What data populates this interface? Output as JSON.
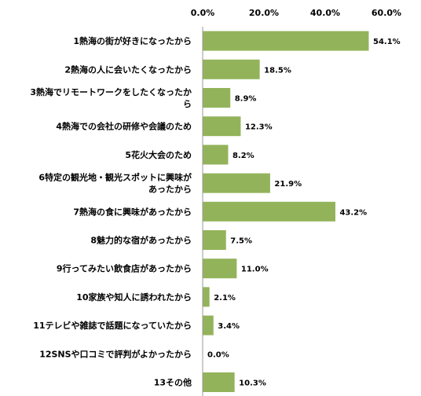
{
  "chart_data": {
    "type": "bar",
    "orientation": "horizontal",
    "title": "",
    "xlabel": "",
    "ylabel": "",
    "xlim": [
      0,
      60
    ],
    "x_ticks": [
      "0.0%",
      "20.0%",
      "40.0%",
      "60.0%"
    ],
    "grid": false,
    "bar_color": "#93b35a",
    "categories": [
      "1熱海の街が好きになったから",
      "2熱海の人に会いたくなったから",
      "3熱海でリモートワークをしたくなったから",
      "4熱海での会社の研修や会議のため",
      "5花火大会のため",
      "6特定の観光地・観光スポットに興味があったから",
      "7熱海の食に興味があったから",
      "8魅力的な宿があったから",
      "9行ってみたい飲食店があったから",
      "10家族や知人に誘われたから",
      "11テレビや雑誌で話題になっていたから",
      "12SNSや口コミで評判がよかったから",
      "13その他"
    ],
    "category_lines": [
      [
        "1熱海の街が好きになったから"
      ],
      [
        "2熱海の人に会いたくなったから"
      ],
      [
        "3熱海でリモートワークをしたくなったか",
        "ら"
      ],
      [
        "4熱海での会社の研修や会議のため"
      ],
      [
        "5花火大会のため"
      ],
      [
        "6特定の観光地・観光スポットに興味が",
        "あったから"
      ],
      [
        "7熱海の食に興味があったから"
      ],
      [
        "8魅力的な宿があったから"
      ],
      [
        "9行ってみたい飲食店があったから"
      ],
      [
        "10家族や知人に誘われたから"
      ],
      [
        "11テレビや雑誌で話題になっていたから"
      ],
      [
        "12SNSや口コミで評判がよかったから"
      ],
      [
        "13その他"
      ]
    ],
    "values": [
      54.1,
      18.5,
      8.9,
      12.3,
      8.2,
      21.9,
      43.2,
      7.5,
      11.0,
      2.1,
      3.4,
      0.0,
      10.3
    ],
    "value_labels": [
      "54.1%",
      "18.5%",
      "8.9%",
      "12.3%",
      "8.2%",
      "21.9%",
      "43.2%",
      "7.5%",
      "11.0%",
      "2.1%",
      "3.4%",
      "0.0%",
      "10.3%"
    ]
  }
}
